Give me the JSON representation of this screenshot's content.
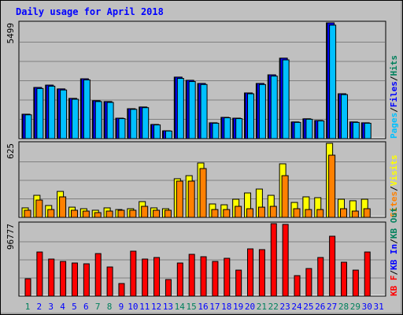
{
  "chart_data": [
    {
      "type": "bar",
      "title": "Daily usage for April 2018",
      "ylim": [
        0,
        5499
      ],
      "yticks": [
        5499
      ],
      "series": [
        {
          "name": "Pages",
          "color": "#00c0ff",
          "values": [
            1130,
            2380,
            2490,
            2310,
            1870,
            2790,
            1760,
            1720,
            950,
            1390,
            1470,
            650,
            360,
            2860,
            2710,
            2570,
            730,
            990,
            950,
            2130,
            2570,
            2970,
            3740,
            770,
            920,
            840,
            5390,
            2090,
            770,
            730,
            null
          ]
        },
        {
          "name": "Files",
          "color": "#0000ff",
          "values": [
            1160,
            2430,
            2540,
            2360,
            1910,
            2840,
            1800,
            1760,
            970,
            1420,
            1500,
            670,
            370,
            2920,
            2770,
            2620,
            750,
            1010,
            970,
            2170,
            2620,
            3030,
            3820,
            790,
            940,
            860,
            5499,
            2130,
            790,
            750,
            null
          ]
        },
        {
          "name": "Hits",
          "color": "#00805c",
          "values": [
            1160,
            2430,
            2540,
            2360,
            1910,
            2840,
            1800,
            1760,
            970,
            1420,
            1500,
            670,
            370,
            2920,
            2770,
            2620,
            750,
            1010,
            970,
            2170,
            2620,
            3030,
            3820,
            790,
            940,
            860,
            5499,
            2130,
            790,
            750,
            null
          ]
        }
      ]
    },
    {
      "type": "bar",
      "ylim": [
        0,
        625
      ],
      "yticks": [
        625
      ],
      "series": [
        {
          "name": "Sites",
          "color": "#ff8000",
          "values": [
            60,
            146,
            66,
            173,
            60,
            53,
            40,
            53,
            60,
            60,
            93,
            60,
            60,
            306,
            306,
            412,
            66,
            66,
            93,
            73,
            86,
            93,
            352,
            73,
            66,
            66,
            525,
            73,
            53,
            73,
            null
          ]
        },
        {
          "name": "Visits",
          "color": "#ffff00",
          "values": [
            80,
            186,
            100,
            219,
            86,
            73,
            60,
            80,
            66,
            73,
            133,
            80,
            73,
            326,
            352,
            459,
            113,
            106,
            153,
            206,
            239,
            186,
            452,
            126,
            173,
            166,
            625,
            153,
            140,
            153,
            null
          ]
        }
      ]
    },
    {
      "type": "bar",
      "ylim": [
        0,
        96777
      ],
      "yticks": [
        96777
      ],
      "categories": [
        1,
        2,
        3,
        4,
        5,
        6,
        7,
        8,
        9,
        10,
        11,
        12,
        13,
        14,
        15,
        16,
        17,
        18,
        19,
        20,
        21,
        22,
        23,
        24,
        25,
        26,
        27,
        28,
        29,
        30,
        31
      ],
      "category_colors": [
        "#00805c",
        "#0000ff",
        "#0000ff",
        "#0000ff",
        "#0000ff",
        "#0000ff",
        "#00805c",
        "#00805c",
        "#0000ff",
        "#0000ff",
        "#0000ff",
        "#0000ff",
        "#0000ff",
        "#00805c",
        "#00805c",
        "#0000ff",
        "#0000ff",
        "#0000ff",
        "#0000ff",
        "#0000ff",
        "#00805c",
        "#00805c",
        "#0000ff",
        "#0000ff",
        "#0000ff",
        "#0000ff",
        "#0000ff",
        "#00805c",
        "#00805c",
        "#0000ff",
        "#0000ff"
      ],
      "series": [
        {
          "name": "KB F",
          "color": "#ff0000",
          "values": [
            23150,
            58900,
            49460,
            46300,
            44200,
            43150,
            56800,
            38900,
            16800,
            60000,
            49460,
            51570,
            22100,
            44200,
            55800,
            52600,
            46300,
            50500,
            34700,
            63100,
            62100,
            96777,
            95770,
            27360,
            36830,
            51570,
            79980,
            45250,
            34700,
            58900,
            null
          ]
        },
        {
          "name": "KB In",
          "color": "#0000ff",
          "values": [
            null,
            null,
            null,
            null,
            null,
            null,
            null,
            null,
            null,
            null,
            null,
            null,
            null,
            null,
            null,
            null,
            null,
            null,
            null,
            null,
            null,
            null,
            null,
            null,
            null,
            null,
            null,
            null,
            null,
            null,
            null
          ]
        },
        {
          "name": "KB Out",
          "color": "#00805c",
          "values": [
            null,
            null,
            null,
            null,
            null,
            null,
            null,
            null,
            null,
            null,
            null,
            null,
            null,
            null,
            null,
            null,
            null,
            null,
            null,
            null,
            null,
            null,
            null,
            null,
            null,
            null,
            null,
            null,
            null,
            null,
            null
          ]
        }
      ]
    }
  ]
}
